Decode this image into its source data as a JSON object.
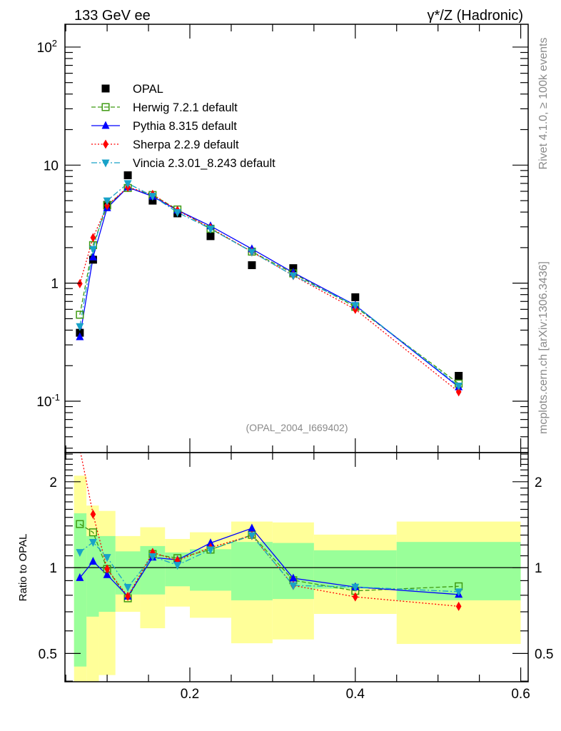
{
  "header": {
    "left_title": "133 GeV ee",
    "right_title": "γ*/Z (Hadronic)",
    "side_text_top": "Rivet 4.1.0, ≥ 100k events",
    "side_text_bottom": "mcplots.cern.ch [arXiv:1306.3436]",
    "analysis_id": "(OPAL_2004_I669402)"
  },
  "chart_data": {
    "type": "scatter",
    "title": "133 GeV ee — γ*/Z (Hadronic)",
    "xlabel": "",
    "ylabel": "",
    "ratio_ylabel": "Ratio to OPAL",
    "xlim": [
      0.049,
      0.609
    ],
    "ylim": [
      0.0367,
      156
    ],
    "yscale": "log",
    "ratio_ylim": [
      0.398,
      2.53
    ],
    "ratio_yscale": "log",
    "x_tick_labels": [
      "0.2",
      "0.4",
      "0.6"
    ],
    "x_ticks": [
      0.2,
      0.4,
      0.6
    ],
    "y_tick_labels": [
      "10^2",
      "10",
      "1",
      "10^-1"
    ],
    "y_ticks": [
      100,
      10,
      1,
      0.1
    ],
    "ratio_tick_labels": [
      "2",
      "1",
      "0.5"
    ],
    "ratio_ticks": [
      2,
      1,
      0.5
    ],
    "legend_position": "top-left",
    "bin_edges": [
      0.06,
      0.075,
      0.09,
      0.11,
      0.14,
      0.17,
      0.2,
      0.25,
      0.3,
      0.35,
      0.45,
      0.6
    ],
    "x": [
      0.067,
      0.083,
      0.1,
      0.125,
      0.155,
      0.185,
      0.225,
      0.275,
      0.325,
      0.4,
      0.525
    ],
    "data": {
      "name": "OPAL",
      "color": "#000000",
      "values": [
        0.38,
        1.58,
        4.6,
        8.2,
        5.0,
        3.9,
        2.5,
        1.42,
        1.34,
        0.76,
        0.164
      ]
    },
    "series": [
      {
        "name": "Herwig 7.2.1 default",
        "color": "#3f9a12",
        "marker": "open-square",
        "line": "dashed",
        "values": [
          0.54,
          2.1,
          4.55,
          6.4,
          5.58,
          4.21,
          2.89,
          1.85,
          1.21,
          0.63,
          0.141
        ]
      },
      {
        "name": "Pythia 8.315 default",
        "color": "#0000ff",
        "marker": "triangle-up",
        "line": "solid",
        "values": [
          0.35,
          1.66,
          4.34,
          6.5,
          5.43,
          4.15,
          3.05,
          1.95,
          1.23,
          0.65,
          0.132
        ]
      },
      {
        "name": "Sherpa 2.2.9 default",
        "color": "#ff0000",
        "marker": "diamond",
        "line": "dotted",
        "values": [
          0.99,
          2.43,
          4.55,
          6.5,
          5.65,
          4.13,
          2.94,
          1.84,
          1.16,
          0.6,
          0.12
        ]
      },
      {
        "name": "Vincia 2.3.01_8.243 default",
        "color": "#18a2c8",
        "marker": "triangle-down",
        "line": "dashdot",
        "values": [
          0.43,
          1.94,
          5.0,
          7.0,
          5.47,
          3.98,
          2.89,
          1.84,
          1.16,
          0.65,
          0.135
        ]
      }
    ],
    "uncertainty_bands": {
      "inner_color": "#99ff99",
      "outer_color": "#ffff99",
      "inner": [
        [
          0.45,
          1.55
        ],
        [
          0.673,
          1.29
        ],
        [
          0.7,
          1.29
        ],
        [
          0.805,
          1.14
        ],
        [
          0.805,
          1.19
        ],
        [
          0.86,
          1.13
        ],
        [
          0.83,
          1.16
        ],
        [
          0.768,
          1.23
        ],
        [
          0.776,
          1.22
        ],
        [
          0.843,
          1.15
        ],
        [
          0.768,
          1.23
        ]
      ],
      "outer": [
        [
          0.3,
          2.1
        ],
        [
          0.3,
          1.65
        ],
        [
          0.42,
          1.58
        ],
        [
          0.7,
          1.29
        ],
        [
          0.613,
          1.385
        ],
        [
          0.73,
          1.26
        ],
        [
          0.667,
          1.33
        ],
        [
          0.543,
          1.45
        ],
        [
          0.56,
          1.44
        ],
        [
          0.688,
          1.305
        ],
        [
          0.54,
          1.45
        ]
      ]
    }
  }
}
